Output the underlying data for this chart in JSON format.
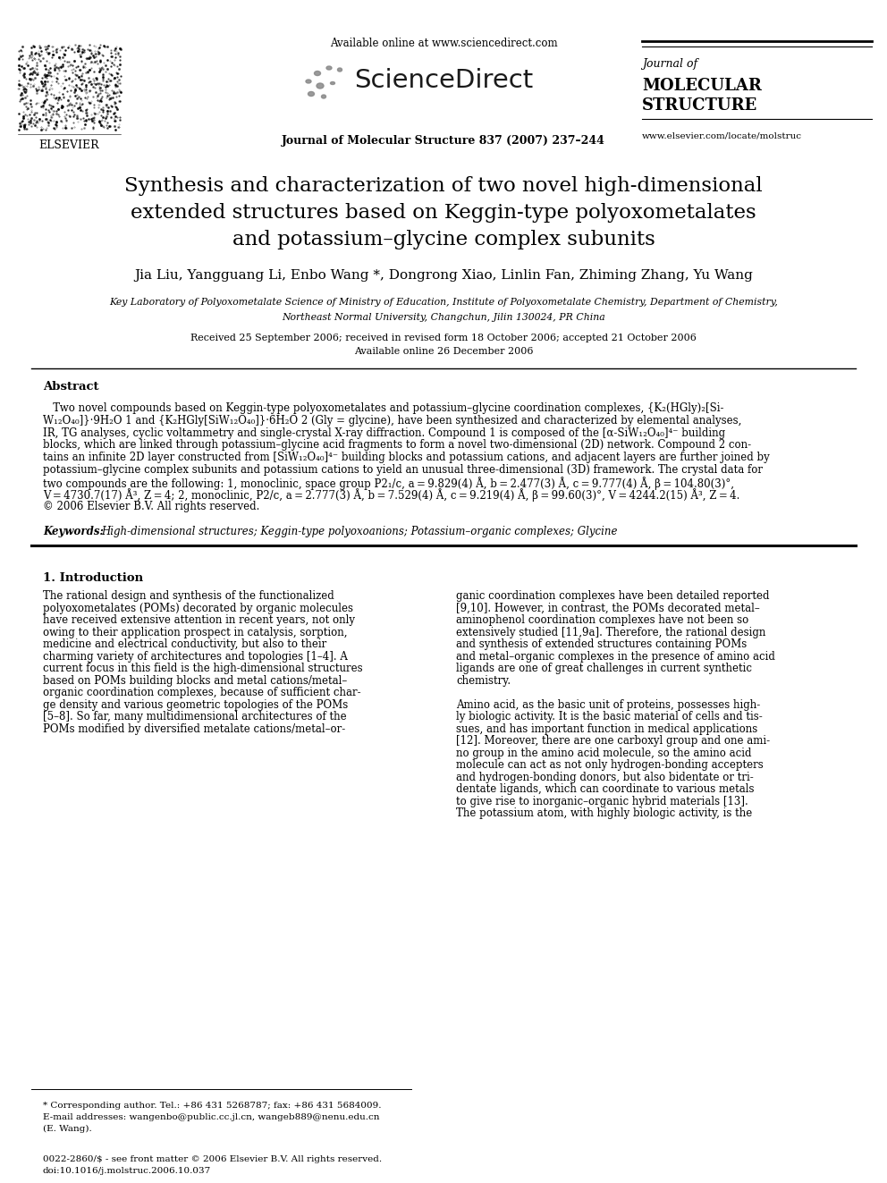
{
  "bg_color": "#ffffff",
  "header": {
    "available_online": "Available online at www.sciencedirect.com",
    "journal_ref": "Journal of Molecular Structure 837 (2007) 237–244",
    "journal_name_line1": "Journal of",
    "journal_name_line2": "MOLECULAR",
    "journal_name_line3": "STRUCTURE",
    "website": "www.elsevier.com/locate/molstruc",
    "elsevier": "ELSEVIER"
  },
  "title_line1": "Synthesis and characterization of two novel high-dimensional",
  "title_line2": "extended structures based on Keggin-type polyoxometalates",
  "title_line3": "and potassium–glycine complex subunits",
  "authors": "Jia Liu, Yangguang Li, Enbo Wang *, Dongrong Xiao, Linlin Fan, Zhiming Zhang, Yu Wang",
  "affiliation_line1": "Key Laboratory of Polyoxometalate Science of Ministry of Education, Institute of Polyoxometalate Chemistry, Department of Chemistry,",
  "affiliation_line2": "Northeast Normal University, Changchun, Jilin 130024, PR China",
  "received": "Received 25 September 2006; received in revised form 18 October 2006; accepted 21 October 2006",
  "available": "Available online 26 December 2006",
  "abstract_title": "Abstract",
  "keywords_label": "Keywords:",
  "keywords_text": "High-dimensional structures; Keggin-type polyoxoanions; Potassium–organic complexes; Glycine",
  "section1_title": "1. Introduction",
  "footnote_star": "* Corresponding author. Tel.: +86 431 5268787; fax: +86 431 5684009.",
  "footnote_email1": "E-mail addresses: wangenbo@public.cc.jl.cn, wangeb889@nenu.edu.cn",
  "footnote_email2": "(E. Wang).",
  "footer_issn": "0022-2860/$ - see front matter © 2006 Elsevier B.V. All rights reserved.",
  "footer_doi": "doi:10.1016/j.molstruc.2006.10.037",
  "abstract_lines": [
    "   Two novel compounds based on Keggin-type polyoxometalates and potassium–glycine coordination complexes, {K₂(HGly)₂[Si-",
    "W₁₂O₄₀]}·9H₂O 1 and {K₂HGly[SiW₁₂O₄₀]}·6H₂O 2 (Gly = glycine), have been synthesized and characterized by elemental analyses,",
    "IR, TG analyses, cyclic voltammetry and single-crystal X-ray diffraction. Compound 1 is composed of the [α-SiW₁₂O₄₀]⁴⁻ building",
    "blocks, which are linked through potassium–glycine acid fragments to form a novel two-dimensional (2D) network. Compound 2 con-",
    "tains an infinite 2D layer constructed from [SiW₁₂O₄₀]⁴⁻ building blocks and potassium cations, and adjacent layers are further joined by",
    "potassium–glycine complex subunits and potassium cations to yield an unusual three-dimensional (3D) framework. The crystal data for",
    "two compounds are the following: 1, monoclinic, space group P2₁/c, a = 9.829(4) Å, b = 2.477(3) Å, c = 9.777(4) Å, β = 104.80(3)°,",
    "V = 4730.7(17) Å³, Z = 4; 2, monoclinic, P2/c, a = 2.777(3) Å, b = 7.529(4) Å, c = 9.219(4) Å, β = 99.60(3)°, V = 4244.2(15) Å³, Z = 4.",
    "© 2006 Elsevier B.V. All rights reserved."
  ],
  "intro_left_lines": [
    "The rational design and synthesis of the functionalized",
    "polyoxometalates (POMs) decorated by organic molecules",
    "have received extensive attention in recent years, not only",
    "owing to their application prospect in catalysis, sorption,",
    "medicine and electrical conductivity, but also to their",
    "charming variety of architectures and topologies [1–4]. A",
    "current focus in this field is the high-dimensional structures",
    "based on POMs building blocks and metal cations/metal–",
    "organic coordination complexes, because of sufficient char-",
    "ge density and various geometric topologies of the POMs",
    "[5–8]. So far, many multidimensional architectures of the",
    "POMs modified by diversified metalate cations/metal–or-"
  ],
  "intro_right_lines": [
    "ganic coordination complexes have been detailed reported",
    "[9,10]. However, in contrast, the POMs decorated metal–",
    "aminophenol coordination complexes have not been so",
    "extensively studied [11,9a]. Therefore, the rational design",
    "and synthesis of extended structures containing POMs",
    "and metal–organic complexes in the presence of amino acid",
    "ligands are one of great challenges in current synthetic",
    "chemistry.",
    "",
    "Amino acid, as the basic unit of proteins, possesses high-",
    "ly biologic activity. It is the basic material of cells and tis-",
    "sues, and has important function in medical applications",
    "[12]. Moreover, there are one carboxyl group and one ami-",
    "no group in the amino acid molecule, so the amino acid",
    "molecule can act as not only hydrogen-bonding accepters",
    "and hydrogen-bonding donors, but also bidentate or tri-",
    "dentate ligands, which can coordinate to various metals",
    "to give rise to inorganic–organic hybrid materials [13].",
    "The potassium atom, with highly biologic activity, is the"
  ]
}
